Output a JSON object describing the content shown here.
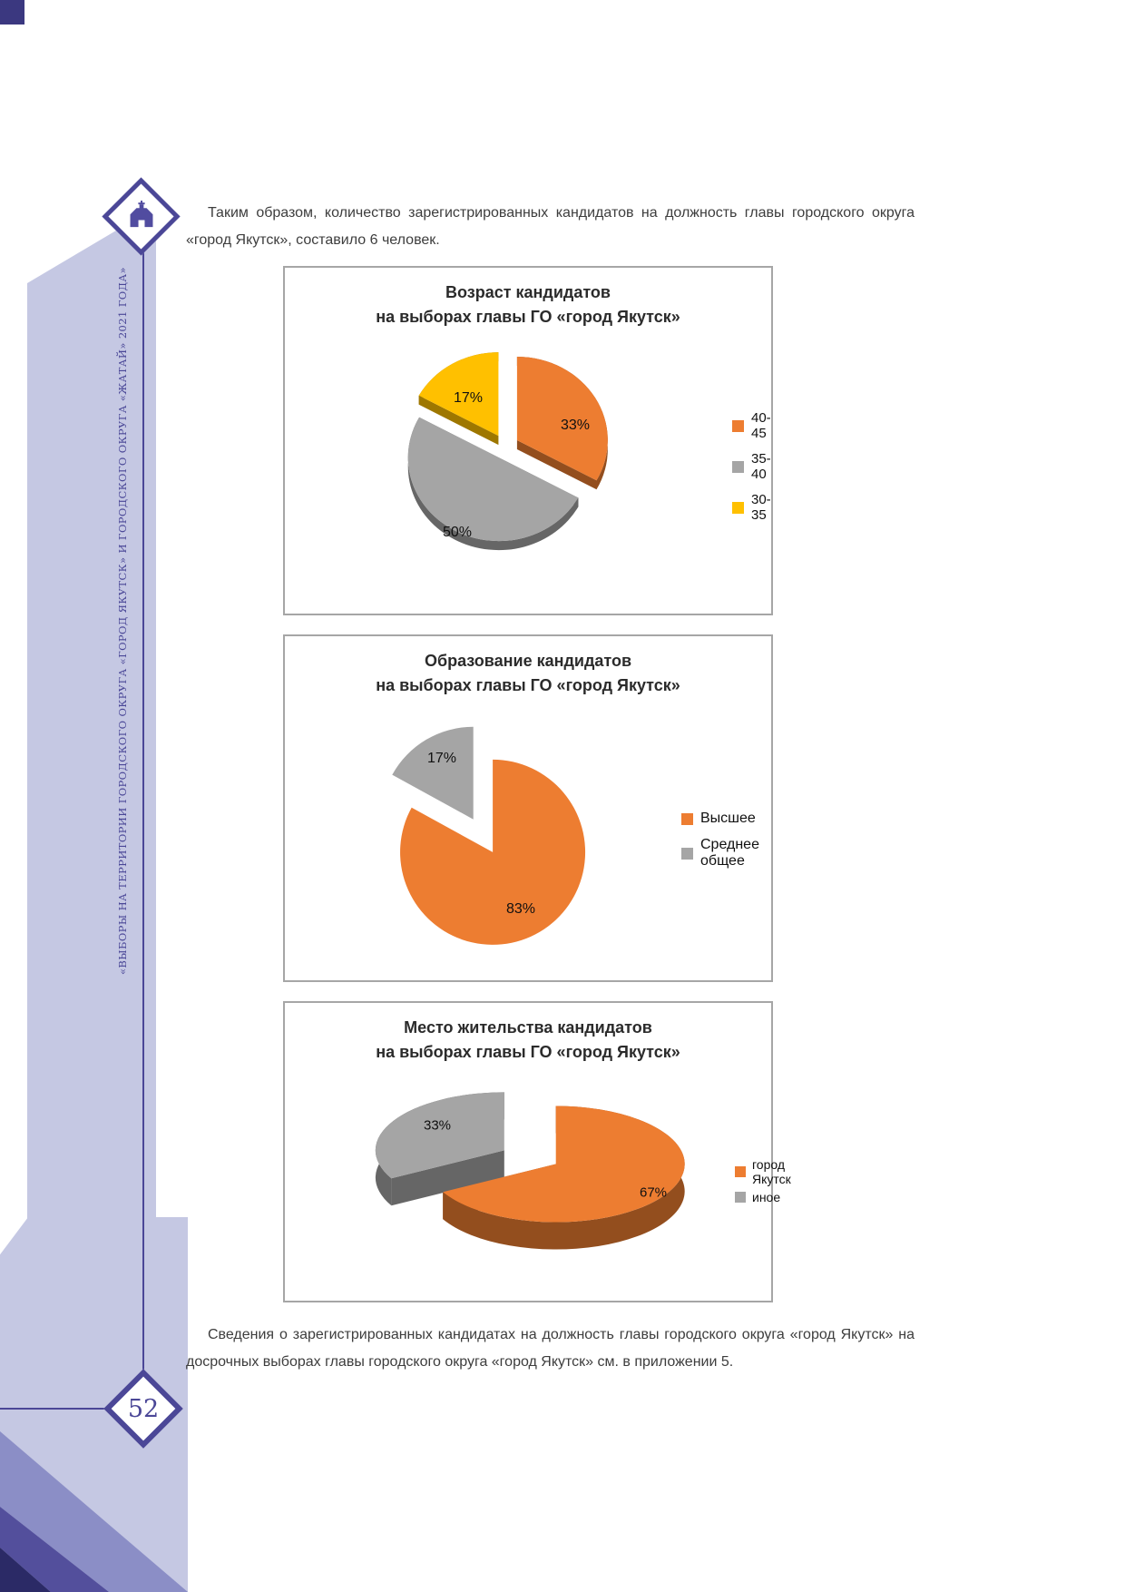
{
  "page": {
    "number": "52",
    "sidebar_vertical_text": "«ВЫБОРЫ НА ТЕРРИТОРИИ ГОРОДСКОГО ОКРУГА «ГОРОД ЯКУТСК» И ГОРОДСКОГО ОКРУГА «ЖАТАЙ» 2021 ГОДА»",
    "intro_paragraph": "Таким образом, количество зарегистрированных кандидатов на должность главы городского округа «город Якутск», составило 6 человек.",
    "closing_paragraph": "Сведения о зарегистрированных кандидатах на должность главы городского округа «город Якутск» на досрочных выборах главы городского округа «город Якутск» см. в приложении 5."
  },
  "colors": {
    "accent_purple": "#4B4797",
    "lavender": "#C5C8E3",
    "orange": "#ED7D31",
    "gray": "#A5A5A5",
    "yellow": "#FFC000",
    "box_border": "#A6A6A6"
  },
  "chart_data": [
    {
      "type": "pie",
      "style": "3d-exploded",
      "title_line1": "Возраст кандидатов",
      "title_line2": "на выборах главы ГО «город Якутск»",
      "legend_position": "right",
      "slices": [
        {
          "label": "40-45",
          "value": 33,
          "percent_label": "33%",
          "color": "#ED7D31"
        },
        {
          "label": "35-40",
          "value": 50,
          "percent_label": "50%",
          "color": "#A5A5A5"
        },
        {
          "label": "30-35",
          "value": 17,
          "percent_label": "17%",
          "color": "#FFC000"
        }
      ]
    },
    {
      "type": "pie",
      "style": "2d-exploded",
      "title_line1": "Образование кандидатов",
      "title_line2": "на выборах главы ГО «город Якутск»",
      "legend_position": "right",
      "slices": [
        {
          "label": "Высшее",
          "value": 83,
          "percent_label": "83%",
          "color": "#ED7D31"
        },
        {
          "label": "Среднее общее",
          "value": 17,
          "percent_label": "17%",
          "color": "#A5A5A5"
        }
      ]
    },
    {
      "type": "pie",
      "style": "3d-perspective-exploded",
      "title_line1": "Место жительства кандидатов",
      "title_line2": "на выборах главы ГО «город Якутск»",
      "legend_position": "right",
      "slices": [
        {
          "label": "город Якутск",
          "value": 67,
          "percent_label": "67%",
          "color": "#ED7D31"
        },
        {
          "label": "иное",
          "value": 33,
          "percent_label": "33%",
          "color": "#A5A5A5"
        }
      ]
    }
  ]
}
